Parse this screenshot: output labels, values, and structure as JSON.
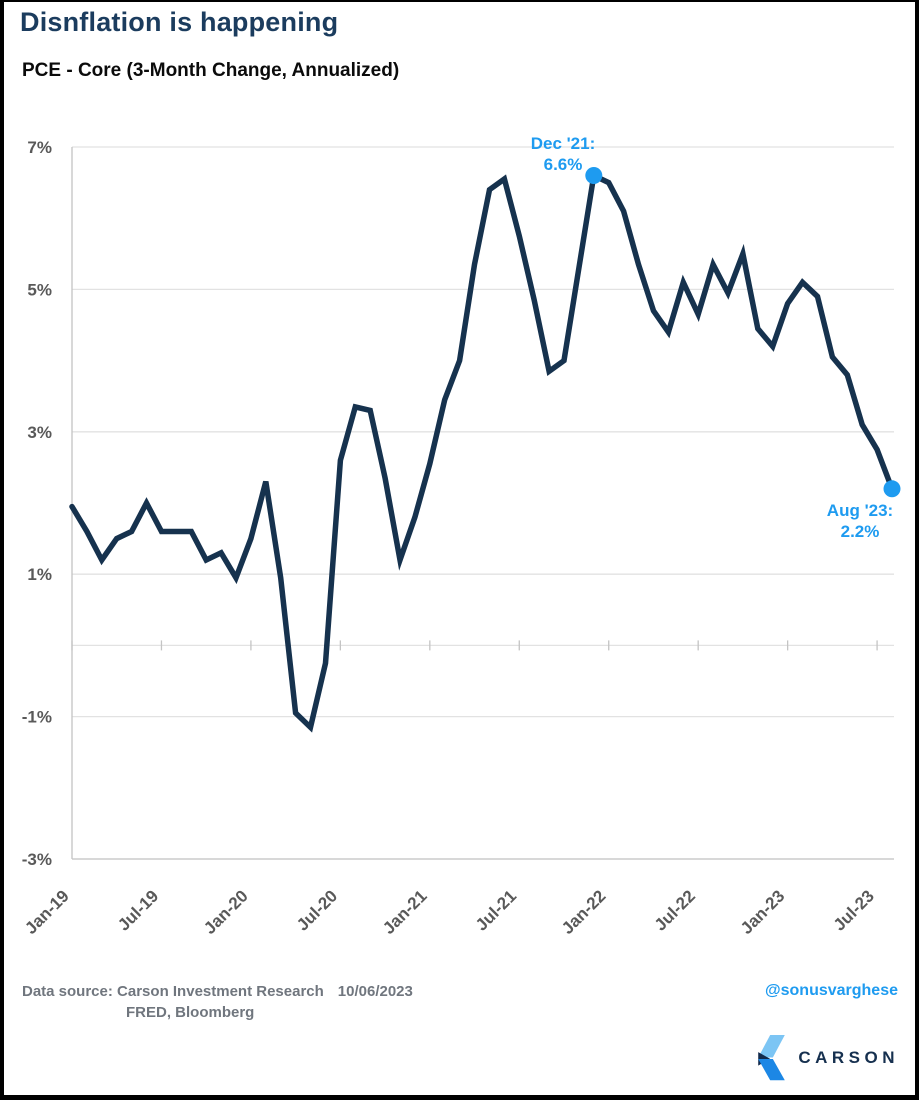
{
  "header": {
    "title": "Disnflation is happening",
    "subtitle": "PCE - Core (3-Month Change, Annualized)"
  },
  "chart_data": {
    "type": "line",
    "title": "PCE - Core (3-Month Change, Annualized)",
    "x": [
      "Jan-19",
      "Feb-19",
      "Mar-19",
      "Apr-19",
      "May-19",
      "Jun-19",
      "Jul-19",
      "Aug-19",
      "Sep-19",
      "Oct-19",
      "Nov-19",
      "Dec-19",
      "Jan-20",
      "Feb-20",
      "Mar-20",
      "Apr-20",
      "May-20",
      "Jun-20",
      "Jul-20",
      "Aug-20",
      "Sep-20",
      "Oct-20",
      "Nov-20",
      "Dec-20",
      "Jan-21",
      "Feb-21",
      "Mar-21",
      "Apr-21",
      "May-21",
      "Jun-21",
      "Jul-21",
      "Aug-21",
      "Sep-21",
      "Oct-21",
      "Nov-21",
      "Dec-21",
      "Jan-22",
      "Feb-22",
      "Mar-22",
      "Apr-22",
      "May-22",
      "Jun-22",
      "Jul-22",
      "Aug-22",
      "Sep-22",
      "Oct-22",
      "Nov-22",
      "Dec-22",
      "Jan-23",
      "Feb-23",
      "Mar-23",
      "Apr-23",
      "May-23",
      "Jun-23",
      "Jul-23",
      "Aug-23"
    ],
    "values": [
      1.95,
      1.6,
      1.2,
      1.5,
      1.6,
      2.0,
      1.6,
      1.6,
      1.6,
      1.2,
      1.3,
      0.95,
      1.5,
      2.3,
      0.95,
      -0.95,
      -1.15,
      -0.25,
      2.6,
      3.35,
      3.3,
      2.35,
      1.2,
      1.8,
      2.55,
      3.45,
      4.0,
      5.35,
      6.4,
      6.55,
      5.75,
      4.85,
      3.85,
      4.0,
      5.3,
      6.6,
      6.5,
      6.1,
      5.35,
      4.7,
      4.4,
      5.1,
      4.65,
      5.35,
      4.95,
      5.5,
      4.45,
      4.2,
      4.8,
      5.1,
      4.9,
      4.05,
      3.8,
      3.1,
      2.75,
      2.2
    ],
    "x_tick_labels": [
      "Jan-19",
      "Jul-19",
      "Jan-20",
      "Jul-20",
      "Jan-21",
      "Jul-21",
      "Jan-22",
      "Jul-22",
      "Jan-23",
      "Jul-23"
    ],
    "x_tick_indices": [
      0,
      6,
      12,
      18,
      24,
      30,
      36,
      42,
      48,
      54
    ],
    "y_ticks": [
      "7%",
      "5%",
      "3%",
      "1%",
      "-1%",
      "-3%"
    ],
    "y_tick_values": [
      7,
      5,
      3,
      1,
      -1,
      -3
    ],
    "ylim": [
      -3,
      7
    ],
    "grid": "horizontal every 2%, zero axis with 6-month ticks",
    "legend": "none",
    "line_color": "#16324E",
    "grid_color": "#E2E2E2",
    "axis_color": "#C4C4C4",
    "tick_label_color": "#595959",
    "marker_color": "#1E9BF0",
    "annotations": [
      {
        "label": "Dec '21:",
        "value_label": "6.6%",
        "month": "Dec-21",
        "index": 35,
        "value": 6.6
      },
      {
        "label": "Aug '23:",
        "value_label": "2.2%",
        "month": "Aug-23",
        "index": 55,
        "value": 2.2
      }
    ]
  },
  "footer": {
    "data_source_label": "Data source:",
    "source_org_1": "Carson Investment Research",
    "date": "10/06/2023",
    "source_org_2": "FRED, Bloomberg",
    "handle": "@sonusvarghese",
    "logo_text": "CARSON"
  },
  "colors": {
    "title": "#1B3C5E",
    "accent_blue": "#1E9BF0",
    "logo_navy": "#16304F",
    "logo_light_blue": "#7CC5F4",
    "logo_royal_blue": "#1C87E5",
    "frame_border": "#000000"
  }
}
